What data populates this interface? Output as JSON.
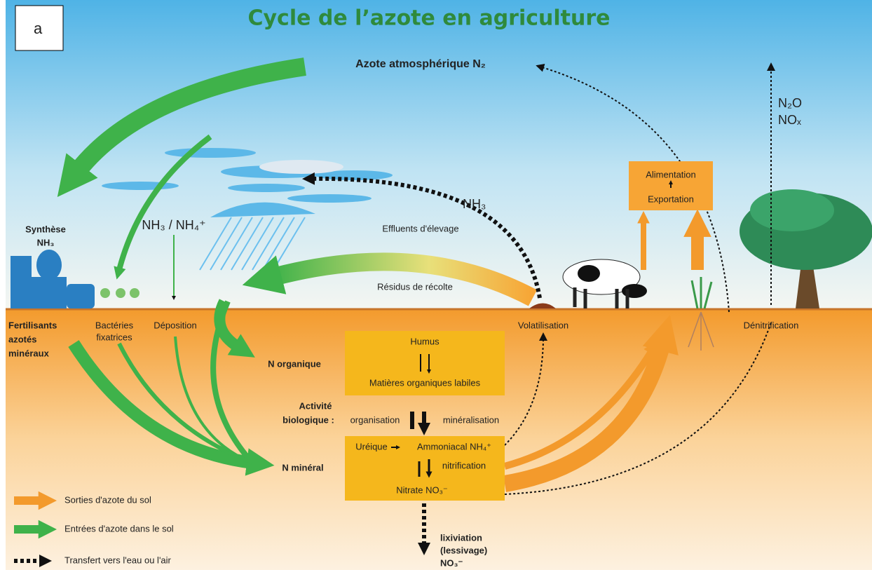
{
  "panel_label": "a",
  "title": "Cycle de l’azote en agriculture",
  "sky": {
    "atmosphere": "Azote atmosphérique N₂",
    "n2o": "N₂O",
    "nox": "NOₓ",
    "nh3_volatil": "NH₃",
    "synthese": [
      "Synthèse",
      "NH₃"
    ],
    "deposition_gas": "NH₃ / NH₄⁺",
    "effluents": "Effluents d'élevage",
    "residus": "Résidus de récolte",
    "export_box": [
      "Alimentation",
      "Exportation"
    ]
  },
  "surface": {
    "fertilisants": [
      "Fertilisants",
      "azotés",
      "minéraux"
    ],
    "bacteries": [
      "Bactéries",
      "fixatrices"
    ],
    "deposition": "Déposition",
    "volatilisation": "Volatilisation",
    "denitrification": "Dénitrification"
  },
  "soil": {
    "organic_box": [
      "Humus",
      "Matières organiques labiles"
    ],
    "n_organique": "N organique",
    "activite": [
      "Activité",
      "biologique :"
    ],
    "organisation": "organisation",
    "mineralisation": "minéralisation",
    "mineral_box": {
      "ureique": "Uréique",
      "ammoniacal": "Ammoniacal NH₄⁺",
      "nitrification": "nitrification",
      "nitrate": "Nitrate  NO₃⁻"
    },
    "n_mineral": "N minéral",
    "lixiviation": [
      "lixiviation",
      "(lessivage)",
      "NO₃⁻"
    ]
  },
  "legend": [
    "Sorties d'azote du sol",
    "Entrées d'azote dans le sol",
    "Transfert vers l'eau ou l'air"
  ]
}
